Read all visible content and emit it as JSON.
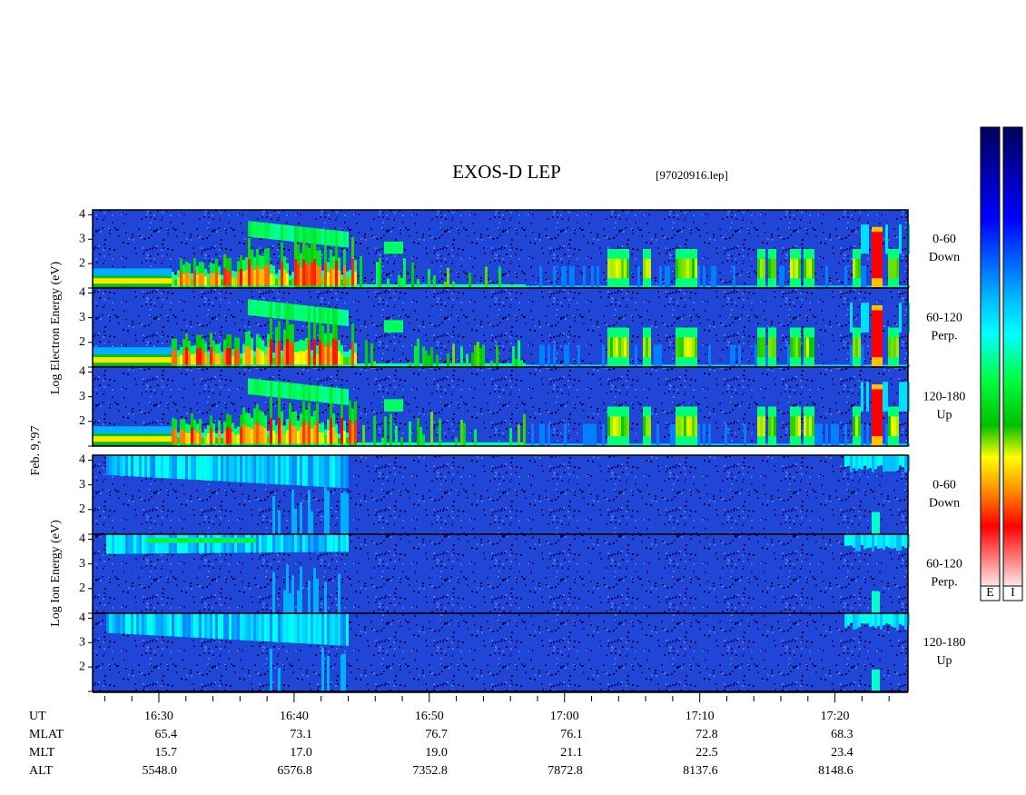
{
  "header": {
    "title": "EXOS-D LEP",
    "file": "[97020916.lep]",
    "date": "Feb. 9,'97"
  },
  "chart_data": {
    "type": "spectrogram",
    "xlabel": "UT",
    "xlim": [
      25.1,
      85.4
    ],
    "xticks": [
      {
        "value": 30,
        "label": "16:30"
      },
      {
        "value": 40,
        "label": "16:40"
      },
      {
        "value": 50,
        "label": "16:50"
      },
      {
        "value": 60,
        "label": "17:00"
      },
      {
        "value": 70,
        "label": "17:10"
      },
      {
        "value": 80,
        "label": "17:20"
      }
    ],
    "xminor": [
      26,
      28,
      32,
      34,
      36,
      38,
      42,
      44,
      46,
      48,
      52,
      54,
      56,
      58,
      62,
      64,
      66,
      68,
      72,
      74,
      76,
      78,
      82,
      84
    ],
    "ylim": [
      1,
      4.2
    ],
    "yticks": [
      2,
      3,
      4
    ],
    "groups": [
      {
        "ylabel": "Log Electron Energy (eV)",
        "panels": [
          {
            "label": [
              "0-60",
              "Down"
            ]
          },
          {
            "label": [
              "60-120",
              "Perp."
            ]
          },
          {
            "label": [
              "120-180",
              "Up"
            ]
          }
        ]
      },
      {
        "ylabel": "Log Ion Energy (eV)",
        "panels": [
          {
            "label": [
              "0-60",
              "Down"
            ]
          },
          {
            "label": [
              "60-120",
              "Perp."
            ]
          },
          {
            "label": [
              "120-180",
              "Up"
            ]
          }
        ]
      }
    ],
    "rows": [
      {
        "name": "MLAT",
        "values": [
          "65.4",
          "73.1",
          "76.7",
          "76.1",
          "72.8",
          "68.3"
        ]
      },
      {
        "name": "MLT",
        "values": [
          "15.7",
          "17.0",
          "19.0",
          "21.1",
          "22.5",
          "23.4"
        ]
      },
      {
        "name": "ALT",
        "values": [
          "5548.0",
          "6576.8",
          "7352.8",
          "7872.8",
          "8137.6",
          "8148.6"
        ]
      }
    ],
    "colorbar": {
      "labels": [
        "E",
        "I"
      ]
    }
  }
}
